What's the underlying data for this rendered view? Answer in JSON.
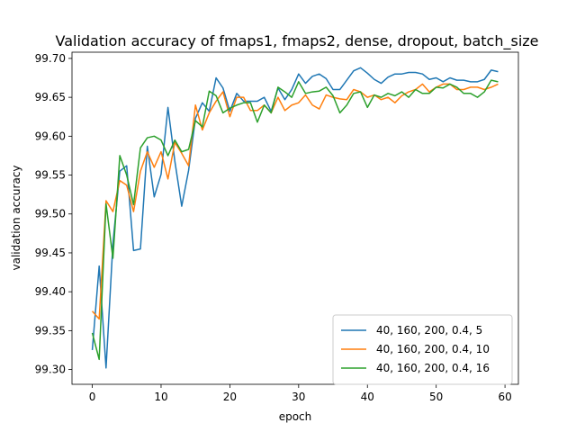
{
  "chart_data": {
    "type": "line",
    "title": "Validation accuracy of fmaps1, fmaps2, dense, dropout, batch_size",
    "xlabel": "epoch",
    "ylabel": "validation accuracy",
    "xlim": [
      -2.95,
      61.95
    ],
    "ylim": [
      99.281,
      99.708
    ],
    "xticks": [
      0,
      10,
      20,
      30,
      40,
      50,
      60
    ],
    "xtick_labels": [
      "0",
      "10",
      "20",
      "30",
      "40",
      "50",
      "60"
    ],
    "yticks": [
      99.3,
      99.35,
      99.4,
      99.45,
      99.5,
      99.55,
      99.6,
      99.65,
      99.7
    ],
    "ytick_labels": [
      "99.30",
      "99.35",
      "99.40",
      "99.45",
      "99.50",
      "99.55",
      "99.60",
      "99.65",
      "99.70"
    ],
    "grid": false,
    "legend_position": "lower-right",
    "x": [
      0,
      1,
      2,
      3,
      4,
      5,
      6,
      7,
      8,
      9,
      10,
      11,
      12,
      13,
      14,
      15,
      16,
      17,
      18,
      19,
      20,
      21,
      22,
      23,
      24,
      25,
      26,
      27,
      28,
      29,
      30,
      31,
      32,
      33,
      34,
      35,
      36,
      37,
      38,
      39,
      40,
      41,
      42,
      43,
      44,
      45,
      46,
      47,
      48,
      49,
      50,
      51,
      52,
      53,
      54,
      55,
      56,
      57,
      58,
      59
    ],
    "series": [
      {
        "name": "40, 160, 200, 0.4, 5",
        "color": "#1f77b4",
        "values": [
          99.325,
          99.433,
          99.302,
          99.462,
          99.555,
          99.562,
          99.453,
          99.455,
          99.587,
          99.522,
          99.551,
          99.637,
          99.568,
          99.51,
          99.556,
          99.623,
          99.643,
          99.632,
          99.675,
          99.662,
          99.632,
          99.655,
          99.645,
          99.645,
          99.645,
          99.65,
          99.632,
          99.662,
          99.647,
          99.66,
          99.68,
          99.668,
          99.677,
          99.68,
          99.674,
          99.66,
          99.66,
          99.672,
          99.684,
          99.688,
          99.681,
          99.673,
          99.668,
          99.676,
          99.68,
          99.68,
          99.682,
          99.682,
          99.68,
          99.673,
          99.675,
          99.67,
          99.675,
          99.672,
          99.672,
          99.67,
          99.67,
          99.673,
          99.685,
          99.683
        ]
      },
      {
        "name": "40, 160, 200, 0.4, 10",
        "color": "#ff7f0e",
        "values": [
          99.375,
          99.365,
          99.517,
          99.503,
          99.543,
          99.537,
          99.503,
          99.555,
          99.58,
          99.56,
          99.58,
          99.545,
          99.592,
          99.578,
          99.562,
          99.64,
          99.608,
          99.63,
          99.645,
          99.657,
          99.625,
          99.65,
          99.65,
          99.633,
          99.633,
          99.64,
          99.63,
          99.65,
          99.633,
          99.64,
          99.643,
          99.653,
          99.64,
          99.635,
          99.653,
          99.65,
          99.648,
          99.647,
          99.66,
          99.657,
          99.65,
          99.653,
          99.647,
          99.65,
          99.643,
          99.652,
          99.657,
          99.66,
          99.667,
          99.657,
          99.663,
          99.667,
          99.667,
          99.66,
          99.66,
          99.663,
          99.663,
          99.66,
          99.663,
          99.667
        ]
      },
      {
        "name": "40, 160, 200, 0.4, 16",
        "color": "#2ca02c",
        "values": [
          99.347,
          99.313,
          99.513,
          99.443,
          99.575,
          99.55,
          99.512,
          99.585,
          99.598,
          99.6,
          99.595,
          99.575,
          99.595,
          99.58,
          99.583,
          99.62,
          99.612,
          99.658,
          99.652,
          99.63,
          99.636,
          99.64,
          99.643,
          99.643,
          99.618,
          99.64,
          99.63,
          99.663,
          99.657,
          99.65,
          99.67,
          99.655,
          99.657,
          99.658,
          99.663,
          99.652,
          99.63,
          99.64,
          99.655,
          99.657,
          99.637,
          99.653,
          99.65,
          99.655,
          99.652,
          99.657,
          99.65,
          99.66,
          99.655,
          99.655,
          99.663,
          99.662,
          99.667,
          99.663,
          99.655,
          99.655,
          99.65,
          99.657,
          99.672,
          99.67
        ]
      }
    ]
  }
}
